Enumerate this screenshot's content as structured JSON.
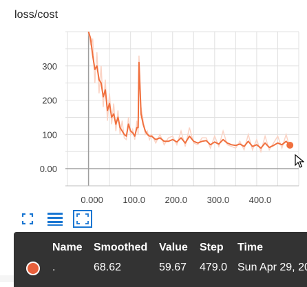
{
  "card": {
    "title": "loss/cost"
  },
  "chart_data": {
    "type": "line",
    "title": "loss/cost",
    "xlabel": "",
    "ylabel": "",
    "xlim": [
      -55,
      500
    ],
    "ylim": [
      -50,
      400
    ],
    "x_ticks": [
      {
        "value": 0,
        "label": "0.000"
      },
      {
        "value": 100,
        "label": "100.0"
      },
      {
        "value": 200,
        "label": "200.0"
      },
      {
        "value": 300,
        "label": "300.0"
      },
      {
        "value": 400,
        "label": "400.0"
      }
    ],
    "y_ticks": [
      {
        "value": 0,
        "label": "0.00"
      },
      {
        "value": 100,
        "label": "100"
      },
      {
        "value": 200,
        "label": "200"
      },
      {
        "value": 300,
        "label": "300"
      }
    ],
    "grid": true,
    "series": [
      {
        "color": "#f0703e",
        "raw_color": "#fbd3c4",
        "x": [
          0,
          5,
          10,
          15,
          20,
          25,
          30,
          35,
          40,
          45,
          50,
          55,
          60,
          65,
          70,
          75,
          80,
          85,
          90,
          95,
          100,
          105,
          110,
          115,
          118,
          120,
          125,
          130,
          135,
          140,
          145,
          150,
          160,
          170,
          180,
          190,
          200,
          210,
          220,
          230,
          240,
          250,
          260,
          270,
          280,
          290,
          300,
          310,
          320,
          330,
          340,
          350,
          360,
          370,
          380,
          390,
          400,
          410,
          420,
          430,
          440,
          450,
          460,
          470,
          479
        ],
        "smoothed": [
          400,
          380,
          330,
          290,
          300,
          260,
          250,
          210,
          230,
          170,
          190,
          150,
          160,
          130,
          150,
          120,
          110,
          100,
          95,
          130,
          110,
          105,
          95,
          120,
          120,
          310,
          160,
          130,
          110,
          100,
          95,
          95,
          85,
          90,
          80,
          80,
          85,
          78,
          90,
          75,
          95,
          80,
          75,
          80,
          82,
          70,
          78,
          72,
          85,
          75,
          70,
          68,
          72,
          65,
          80,
          65,
          70,
          60,
          75,
          62,
          68,
          75,
          70,
          80,
          68.62
        ],
        "raw": [
          400,
          360,
          380,
          250,
          340,
          220,
          300,
          180,
          260,
          140,
          220,
          130,
          190,
          110,
          170,
          100,
          140,
          90,
          85,
          150,
          100,
          115,
          85,
          140,
          100,
          330,
          180,
          140,
          100,
          110,
          85,
          100,
          75,
          100,
          70,
          90,
          95,
          70,
          110,
          65,
          120,
          75,
          70,
          90,
          90,
          60,
          95,
          65,
          110,
          70,
          65,
          60,
          80,
          55,
          100,
          55,
          85,
          50,
          95,
          55,
          75,
          95,
          60,
          100,
          59.67
        ],
        "last_point": {
          "x": 479,
          "y": 68.62
        }
      }
    ]
  },
  "toolbar": {
    "fit_icon": "fit-domain-icon",
    "log_icon": "toggle-log-scale-icon",
    "zoom_icon": "zoom-selection-icon"
  },
  "tooltip": {
    "headers": {
      "name": "Name",
      "smoothed": "Smoothed",
      "value": "Value",
      "step": "Step",
      "time": "Time"
    },
    "row": {
      "name": ".",
      "smoothed": "68.62",
      "value": "59.67",
      "step": "479.0",
      "time": "Sun Apr 29, 20"
    },
    "swatch_color": "#e8603c"
  }
}
